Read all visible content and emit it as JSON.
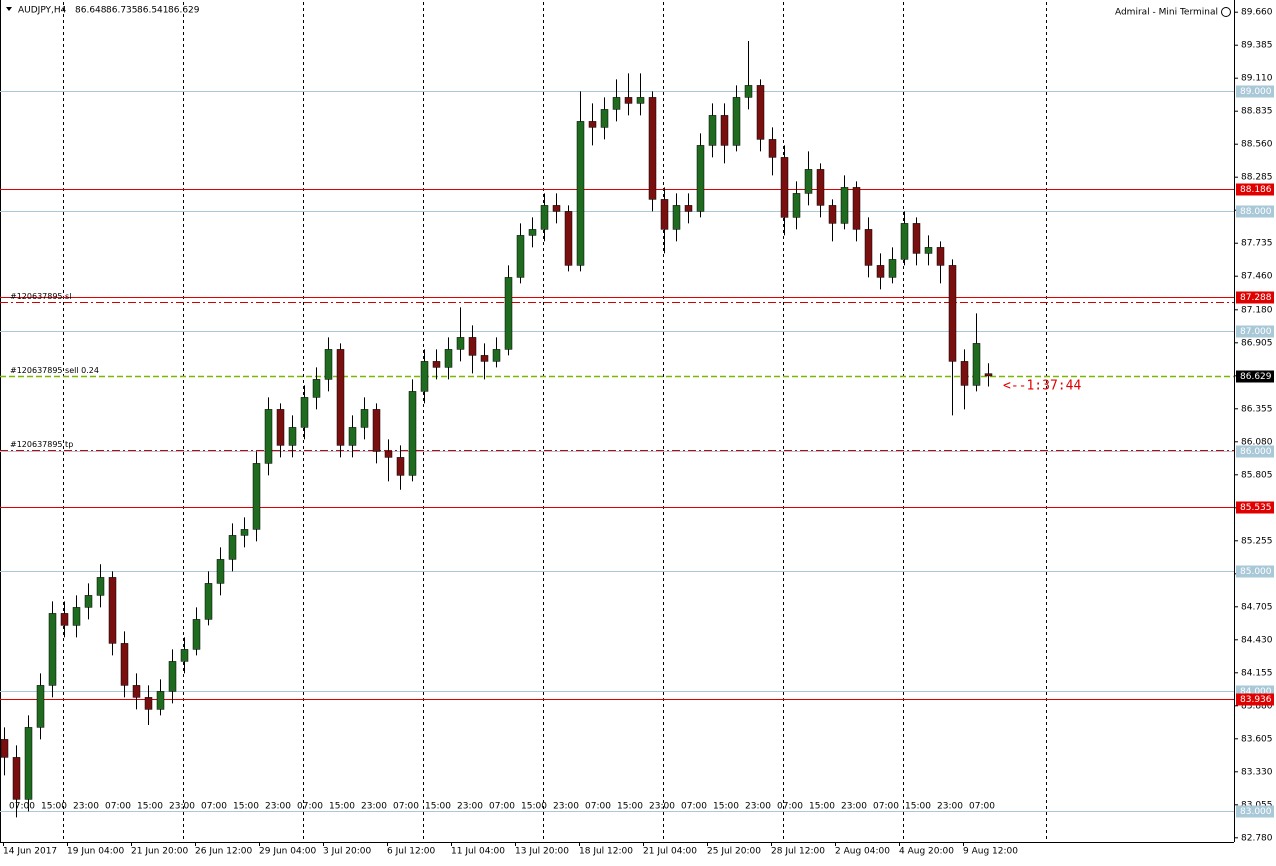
{
  "chart_data": {
    "type": "candlestick",
    "title": "AUDJPY,H4",
    "subtitle": "Admiral - Mini Terminal",
    "timer": "<--1:37:44",
    "bull_color": "#1f6b1f",
    "bear_color": "#7a0f0f",
    "ylim": [
      82.745,
      89.745
    ],
    "yticks": [
      {
        "value": 89.66,
        "label": "89.660"
      },
      89.385,
      {
        "value": 89.11,
        "label": "89.110"
      },
      88.835,
      {
        "value": 88.56,
        "label": "88.560"
      },
      88.285,
      {
        "value": 88.01,
        "label": "88.010"
      },
      87.735,
      {
        "value": 87.46,
        "label": "87.460"
      },
      {
        "value": 87.18,
        "label": "87.180"
      },
      86.905,
      {
        "value": 86.63,
        "label": "86.630"
      },
      86.355,
      {
        "value": 86.08,
        "label": "86.080"
      },
      85.805,
      {
        "value": 85.53,
        "label": "85.530"
      },
      85.255,
      {
        "value": 84.98,
        "label": "84.980"
      },
      84.705,
      {
        "value": 84.43,
        "label": "84.430"
      },
      84.155,
      {
        "value": 83.88,
        "label": "83.880"
      },
      83.605,
      {
        "value": 83.33,
        "label": "83.330"
      },
      83.055,
      {
        "value": 82.78,
        "label": "82.780"
      }
    ],
    "levels": [
      {
        "value": 89,
        "label": "89.000",
        "color": "#a9c8d8"
      },
      {
        "value": 88.186,
        "label": "88.186",
        "color": "#e00000"
      },
      {
        "value": 88,
        "label": "88.000",
        "color": "#a9c8d8"
      },
      {
        "value": 87.288,
        "label": "87.288",
        "color": "#e00000"
      },
      {
        "value": 87,
        "label": "87.000",
        "color": "#a9c8d8"
      },
      {
        "value": 86,
        "label": "86.000",
        "color": "#a9c8d8"
      },
      {
        "value": 85.535,
        "label": "85.535",
        "color": "#e00000"
      },
      {
        "value": 85,
        "label": "85.000",
        "color": "#a9c8d8"
      },
      {
        "value": 84,
        "label": "84.000",
        "color": "#a9c8d8"
      },
      {
        "value": 83.936,
        "label": "83.936",
        "color": "#e00000"
      },
      {
        "value": 83,
        "label": "83.000",
        "color": "#a9c8d8"
      }
    ],
    "orders": [
      {
        "label": "#120637895 sl",
        "value": 87.246,
        "color": "#d00000"
      },
      {
        "label": "#120637895 sell 0.24",
        "value": 86.625,
        "color": "#7ab800"
      },
      {
        "label": "#120637895 tp",
        "value": 86.013,
        "color": "#d00000"
      }
    ],
    "date_labels": [
      "14 Jun 2017",
      "19 Jun 04:00",
      "21 Jun 20:00",
      "26 Jun 12:00",
      "29 Jun 04:00",
      "3 Jul 20:00",
      "6 Jul 12:00",
      "11 Jul 04:00",
      "13 Jul 20:00",
      "18 Jul 12:00",
      "21 Jul 04:00",
      "25 Jul 20:00",
      "28 Jul 12:00",
      "2 Aug 04:00",
      "4 Aug 20:00",
      "9 Aug 12:00"
    ],
    "hour_labels": [
      "07:00",
      "15:00",
      "23:00",
      "07:00",
      "15:00",
      "23:00",
      "07:00",
      "15:00",
      "23:00",
      "07:00",
      "15:00",
      "23:00",
      "07:00",
      "15:00",
      "23:00",
      "07:00",
      "15:00",
      "23:00",
      "07:00",
      "15:00",
      "23:00",
      "07:00",
      "15:00",
      "23:00",
      "07:00",
      "15:00",
      "23:00",
      "07:00",
      "15:00",
      "23:00",
      "07:00"
    ],
    "open": [
      83.6,
      83.45,
      83.1,
      83.7,
      84.05,
      84.65,
      84.55,
      84.7,
      84.8,
      84.95,
      84.4,
      84.05,
      83.95,
      83.85,
      84.0,
      84.25,
      84.35,
      84.6,
      84.9,
      85.1,
      85.3,
      85.35,
      85.9,
      86.35,
      86.05,
      86.2,
      86.45,
      86.6,
      86.85,
      86.05,
      86.2,
      86.35,
      86.0,
      85.95,
      85.8,
      86.5,
      86.75,
      86.7,
      86.85,
      86.95,
      86.8,
      86.75,
      86.85,
      87.45,
      87.8,
      87.85,
      88.05,
      88.0,
      87.55,
      88.75,
      88.7,
      88.85,
      88.95,
      88.9,
      88.95,
      88.1,
      87.85,
      88.05,
      88.0,
      88.55,
      88.8,
      88.55,
      88.95,
      89.05,
      88.6,
      88.45,
      87.95,
      88.15,
      88.35,
      88.05,
      87.9,
      88.2,
      87.85,
      87.55,
      87.45,
      87.6,
      87.9,
      87.65,
      87.7,
      87.55,
      86.75,
      86.55,
      86.648
    ],
    "high": [
      83.7,
      83.55,
      83.8,
      84.15,
      84.75,
      84.75,
      84.8,
      84.9,
      85.06,
      85.0,
      84.5,
      84.15,
      84.05,
      84.1,
      84.35,
      84.45,
      84.7,
      85.0,
      85.2,
      85.4,
      85.45,
      86.0,
      86.45,
      86.4,
      86.3,
      86.55,
      86.7,
      86.95,
      86.9,
      86.3,
      86.45,
      86.4,
      86.1,
      86.05,
      86.6,
      86.85,
      86.85,
      86.95,
      87.2,
      87.05,
      86.9,
      86.95,
      87.55,
      87.9,
      87.95,
      88.15,
      88.15,
      88.05,
      89.0,
      88.9,
      88.95,
      89.1,
      89.15,
      89.15,
      89.0,
      88.2,
      88.15,
      88.15,
      88.65,
      88.9,
      88.9,
      89.05,
      89.42,
      89.1,
      88.7,
      88.55,
      88.25,
      88.5,
      88.4,
      88.1,
      88.3,
      88.25,
      87.95,
      87.65,
      87.7,
      88.0,
      87.95,
      87.8,
      87.75,
      87.6,
      86.85,
      87.15,
      86.735
    ],
    "low": [
      83.3,
      82.95,
      83.0,
      83.6,
      83.95,
      84.45,
      84.45,
      84.6,
      84.7,
      84.3,
      83.95,
      83.85,
      83.72,
      83.8,
      83.9,
      84.15,
      84.3,
      84.55,
      84.8,
      85.0,
      85.2,
      85.25,
      85.8,
      85.95,
      85.95,
      86.1,
      86.35,
      86.5,
      85.95,
      85.95,
      86.1,
      85.9,
      85.75,
      85.68,
      85.75,
      86.4,
      86.6,
      86.6,
      86.75,
      86.65,
      86.6,
      86.7,
      86.8,
      87.4,
      87.7,
      87.75,
      87.9,
      87.5,
      87.5,
      88.55,
      88.6,
      88.75,
      88.8,
      88.8,
      88.0,
      87.65,
      87.75,
      87.9,
      87.95,
      88.45,
      88.4,
      88.5,
      88.85,
      88.5,
      88.3,
      87.8,
      87.85,
      88.05,
      87.95,
      87.75,
      87.85,
      87.75,
      87.45,
      87.35,
      87.4,
      87.55,
      87.55,
      87.55,
      87.4,
      86.3,
      86.35,
      86.5,
      86.541
    ],
    "close": [
      83.45,
      83.1,
      83.7,
      84.05,
      84.65,
      84.55,
      84.7,
      84.8,
      84.95,
      84.4,
      84.05,
      83.95,
      83.85,
      84.0,
      84.25,
      84.35,
      84.6,
      84.9,
      85.1,
      85.3,
      85.35,
      85.9,
      86.35,
      86.05,
      86.2,
      86.45,
      86.6,
      86.85,
      86.05,
      86.2,
      86.35,
      86.0,
      85.95,
      85.8,
      86.5,
      86.75,
      86.7,
      86.85,
      86.95,
      86.8,
      86.75,
      86.85,
      87.45,
      87.8,
      87.85,
      88.05,
      88.0,
      87.55,
      88.75,
      88.7,
      88.85,
      88.95,
      88.9,
      88.95,
      88.1,
      87.85,
      88.05,
      88.0,
      88.55,
      88.8,
      88.55,
      88.95,
      89.05,
      88.6,
      88.45,
      87.95,
      88.15,
      88.35,
      88.05,
      87.9,
      88.2,
      87.85,
      87.55,
      87.45,
      87.6,
      87.9,
      87.65,
      87.7,
      87.55,
      86.75,
      86.55,
      86.9,
      86.629
    ]
  }
}
